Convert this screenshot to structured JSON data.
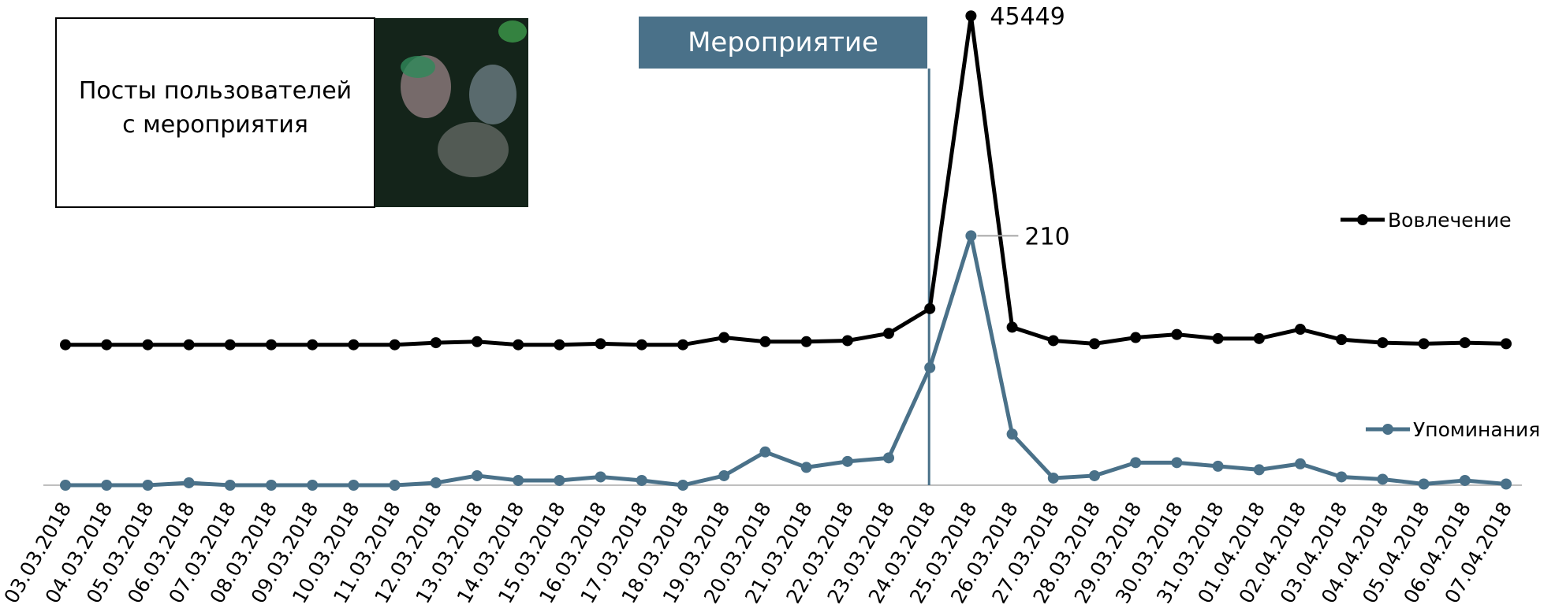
{
  "chart_data": {
    "type": "line",
    "categories": [
      "03.03.2018",
      "04.03.2018",
      "05.03.2018",
      "06.03.2018",
      "07.03.2018",
      "08.03.2018",
      "09.03.2018",
      "10.03.2018",
      "11.03.2018",
      "12.03.2018",
      "13.03.2018",
      "14.03.2018",
      "15.03.2018",
      "16.03.2018",
      "17.03.2018",
      "18.03.2018",
      "19.03.2018",
      "20.03.2018",
      "21.03.2018",
      "22.03.2018",
      "23.03.2018",
      "24.03.2018",
      "25.03.2018",
      "26.03.2018",
      "27.03.2018",
      "28.03.2018",
      "29.03.2018",
      "30.03.2018",
      "31.03.2018",
      "01.04.2018",
      "02.04.2018",
      "03.04.2018",
      "04.04.2018",
      "05.04.2018",
      "06.04.2018",
      "07.04.2018"
    ],
    "series": [
      {
        "name": "Вовлечение",
        "color": "#000000",
        "values": [
          13600,
          13600,
          13600,
          13600,
          13600,
          13600,
          13600,
          13600,
          13600,
          13800,
          13900,
          13600,
          13600,
          13700,
          13600,
          13600,
          14300,
          13900,
          13900,
          14000,
          14700,
          17100,
          45449,
          15300,
          14000,
          13700,
          14300,
          14600,
          14200,
          14200,
          15100,
          14100,
          13800,
          13700,
          13800,
          13700
        ]
      },
      {
        "name": "Упоминания",
        "color": "#4a7189",
        "axis": "y2",
        "values": [
          0,
          0,
          0,
          2,
          0,
          0,
          0,
          0,
          0,
          2,
          8,
          4,
          4,
          7,
          4,
          0,
          8,
          28,
          15,
          20,
          23,
          99,
          210,
          43,
          6,
          8,
          19,
          19,
          16,
          13,
          18,
          7,
          5,
          1,
          4,
          1
        ]
      }
    ],
    "ylim": [
      0,
      46000
    ],
    "y2lim": [
      0,
      400
    ],
    "annotations": {
      "event": "Мероприятие",
      "event_category": "24.03.2018",
      "posts": [
        "Посты пользователей",
        "с мероприятия"
      ]
    }
  }
}
